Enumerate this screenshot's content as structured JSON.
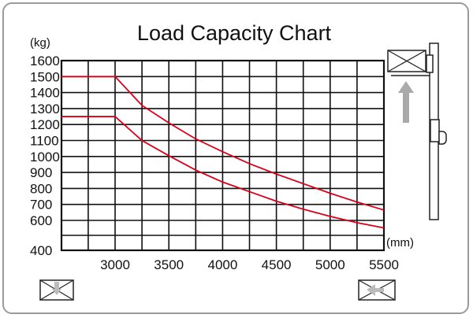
{
  "chart_data": {
    "type": "line",
    "title": "Load Capacity Chart",
    "ylabel": "(kg)",
    "xlabel": "(mm)",
    "y_ticks": [
      400,
      600,
      700,
      800,
      900,
      1000,
      1100,
      1200,
      1300,
      1400,
      1500,
      1600
    ],
    "x_ticks": [
      3000,
      3500,
      4000,
      4500,
      5000,
      5500
    ],
    "xlim": [
      2500,
      5500
    ],
    "grid": true,
    "line_color": "#d9001b",
    "series": [
      {
        "x": [
          2500,
          3000,
          3250,
          3500,
          3750,
          4000,
          4250,
          4500,
          4750,
          5000,
          5250,
          5500
        ],
        "y": [
          1500,
          1500,
          1320,
          1210,
          1110,
          1030,
          955,
          890,
          830,
          770,
          715,
          665
        ]
      },
      {
        "x": [
          2500,
          3000,
          3250,
          3500,
          3750,
          4000,
          4250,
          4500,
          4750,
          5000,
          5250,
          5500
        ],
        "y": [
          1250,
          1250,
          1100,
          1005,
          915,
          840,
          780,
          720,
          670,
          625,
          585,
          550
        ]
      }
    ]
  },
  "icons": {
    "top_right": "forklift-mast-icon",
    "arrow": "up-arrow-icon",
    "bottom_left": "pallet-box-icon",
    "bottom_right": "pallet-box-icon"
  }
}
